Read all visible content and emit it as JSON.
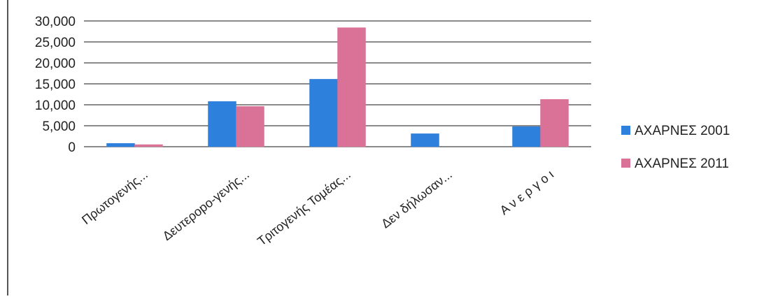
{
  "chart_data": {
    "type": "bar",
    "title": "",
    "xlabel": "",
    "ylabel": "",
    "categories": [
      "Πρωτογενής...",
      "Δευτεροpo-γενής...",
      "Τριτογενής Τομέας...",
      "Δεν δήλωσαν...",
      "Α ν ε ρ γ ο ι"
    ],
    "series": [
      {
        "name": "ΑΧΑΡΝΕΣ 2001",
        "color": "#2e80dd",
        "values": [
          800,
          10800,
          16100,
          3100,
          4800
        ]
      },
      {
        "name": "ΑΧΑΡΝΕΣ 2011",
        "color": "#d97296",
        "values": [
          500,
          9600,
          28400,
          0,
          11300
        ]
      }
    ],
    "ylim": [
      0,
      30000
    ],
    "yticks": [
      0,
      5000,
      10000,
      15000,
      20000,
      25000,
      30000
    ],
    "ytick_labels": [
      "0",
      "5,000",
      "10,000",
      "15,000",
      "20,000",
      "25,000",
      "30,000"
    ],
    "grid": true,
    "legend_position": "right"
  }
}
